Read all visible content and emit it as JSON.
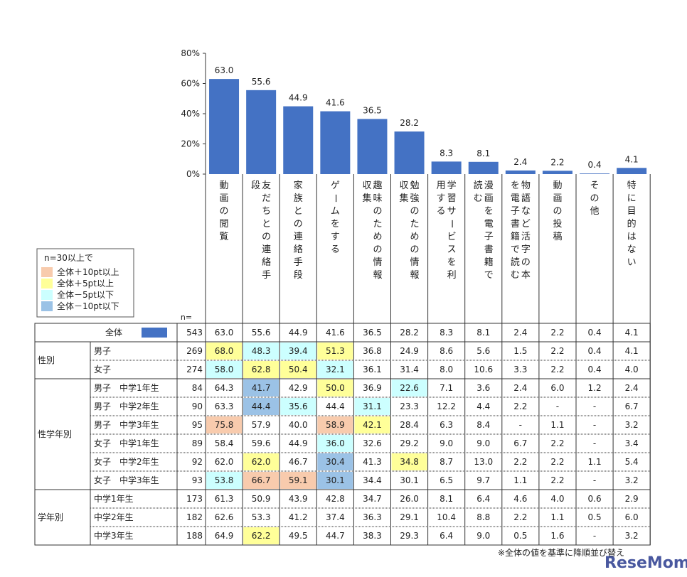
{
  "chart_data": {
    "type": "bar",
    "ylim": [
      0,
      80
    ],
    "yticks": [
      "0%",
      "20%",
      "40%",
      "60%",
      "80%"
    ],
    "bar_color": "#4472c4",
    "categories": [
      "動画の閲覧",
      "友だちとの連絡手段",
      "家族との連絡手段",
      "ゲームをする",
      "趣味のための情報収集",
      "勉強のための情報収集",
      "学習サービスを利用する",
      "漫画を電子書籍で読む",
      "物語など活字の本を電子書籍で読む",
      "動画の投稿",
      "その他",
      "特に目的はない"
    ],
    "values": [
      63.0,
      55.6,
      44.9,
      41.6,
      36.5,
      28.2,
      8.3,
      8.1,
      2.4,
      2.2,
      0.4,
      4.1
    ],
    "value_labels": [
      "63.0",
      "55.6",
      "44.9",
      "41.6",
      "36.5",
      "28.2",
      "8.3",
      "8.1",
      "2.4",
      "2.2",
      "0.4",
      "4.1"
    ]
  },
  "legend": {
    "title": "n=30以上で",
    "items": [
      {
        "label": "全体＋10pt以上",
        "color": "#f8cbad"
      },
      {
        "label": "全体＋5pt以上",
        "color": "#ffff99"
      },
      {
        "label": "全体－5pt以下",
        "color": "#ccffff"
      },
      {
        "label": "全体－10pt以下",
        "color": "#9bc2e6"
      }
    ]
  },
  "n_label": "n=",
  "colors": {
    "plus10": "#f8cbad",
    "plus5": "#ffff99",
    "minus5": "#ccffff",
    "minus10": "#9bc2e6"
  },
  "table": {
    "total": {
      "label": "全体",
      "n": "543",
      "values": [
        "63.0",
        "55.6",
        "44.9",
        "41.6",
        "36.5",
        "28.2",
        "8.3",
        "8.1",
        "2.4",
        "2.2",
        "0.4",
        "4.1"
      ]
    },
    "groups": [
      {
        "label": "性別",
        "rows": [
          {
            "label": "男子",
            "n": "269",
            "values": [
              "68.0",
              "48.3",
              "39.4",
              "51.3",
              "36.8",
              "24.9",
              "8.6",
              "5.6",
              "1.5",
              "2.2",
              "0.4",
              "4.1"
            ],
            "hl": [
              "plus5",
              "minus5",
              "minus5",
              "plus5",
              "",
              "",
              "",
              "",
              "",
              "",
              "",
              ""
            ]
          },
          {
            "label": "女子",
            "n": "274",
            "values": [
              "58.0",
              "62.8",
              "50.4",
              "32.1",
              "36.1",
              "31.4",
              "8.0",
              "10.6",
              "3.3",
              "2.2",
              "0.4",
              "4.0"
            ],
            "hl": [
              "minus5",
              "plus5",
              "plus5",
              "minus5",
              "",
              "",
              "",
              "",
              "",
              "",
              "",
              ""
            ]
          }
        ]
      },
      {
        "label": "性学年別",
        "rows": [
          {
            "label": "男子　中学1年生",
            "n": "84",
            "values": [
              "64.3",
              "41.7",
              "42.9",
              "50.0",
              "36.9",
              "22.6",
              "7.1",
              "3.6",
              "2.4",
              "6.0",
              "1.2",
              "2.4"
            ],
            "hl": [
              "",
              "minus10",
              "",
              "plus5",
              "",
              "minus5",
              "",
              "",
              "",
              "",
              "",
              ""
            ]
          },
          {
            "label": "男子　中学2年生",
            "n": "90",
            "values": [
              "63.3",
              "44.4",
              "35.6",
              "44.4",
              "31.1",
              "23.3",
              "12.2",
              "4.4",
              "2.2",
              "-",
              "-",
              "6.7"
            ],
            "hl": [
              "",
              "minus10",
              "minus5",
              "",
              "minus5",
              "",
              "",
              "",
              "",
              "",
              "",
              ""
            ]
          },
          {
            "label": "男子　中学3年生",
            "n": "95",
            "values": [
              "75.8",
              "57.9",
              "40.0",
              "58.9",
              "42.1",
              "28.4",
              "6.3",
              "8.4",
              "-",
              "1.1",
              "-",
              "3.2"
            ],
            "hl": [
              "plus10",
              "",
              "",
              "plus10",
              "plus5",
              "",
              "",
              "",
              "",
              "",
              "",
              ""
            ]
          },
          {
            "label": "女子　中学1年生",
            "n": "89",
            "values": [
              "58.4",
              "59.6",
              "44.9",
              "36.0",
              "32.6",
              "29.2",
              "9.0",
              "9.0",
              "6.7",
              "2.2",
              "-",
              "3.4"
            ],
            "hl": [
              "",
              "",
              "",
              "minus5",
              "",
              "",
              "",
              "",
              "",
              "",
              "",
              ""
            ]
          },
          {
            "label": "女子　中学2年生",
            "n": "92",
            "values": [
              "62.0",
              "62.0",
              "46.7",
              "30.4",
              "41.3",
              "34.8",
              "8.7",
              "13.0",
              "2.2",
              "2.2",
              "1.1",
              "5.4"
            ],
            "hl": [
              "",
              "plus5",
              "",
              "minus10",
              "",
              "plus5",
              "",
              "",
              "",
              "",
              "",
              ""
            ]
          },
          {
            "label": "女子　中学3年生",
            "n": "93",
            "values": [
              "53.8",
              "66.7",
              "59.1",
              "30.1",
              "34.4",
              "30.1",
              "6.5",
              "9.7",
              "1.1",
              "2.2",
              "-",
              "3.2"
            ],
            "hl": [
              "minus5",
              "plus10",
              "plus10",
              "minus10",
              "",
              "",
              "",
              "",
              "",
              "",
              "",
              ""
            ]
          }
        ]
      },
      {
        "label": "学年別",
        "rows": [
          {
            "label": "中学1年生",
            "n": "173",
            "values": [
              "61.3",
              "50.9",
              "43.9",
              "42.8",
              "34.7",
              "26.0",
              "8.1",
              "6.4",
              "4.6",
              "4.0",
              "0.6",
              "2.9"
            ],
            "hl": [
              "",
              "",
              "",
              "",
              "",
              "",
              "",
              "",
              "",
              "",
              "",
              ""
            ]
          },
          {
            "label": "中学2年生",
            "n": "182",
            "values": [
              "62.6",
              "53.3",
              "41.2",
              "37.4",
              "36.3",
              "29.1",
              "10.4",
              "8.8",
              "2.2",
              "1.1",
              "0.5",
              "6.0"
            ],
            "hl": [
              "",
              "",
              "",
              "",
              "",
              "",
              "",
              "",
              "",
              "",
              "",
              ""
            ]
          },
          {
            "label": "中学3年生",
            "n": "188",
            "values": [
              "64.9",
              "62.2",
              "49.5",
              "44.7",
              "38.3",
              "29.3",
              "6.4",
              "9.0",
              "0.5",
              "1.6",
              "-",
              "3.2"
            ],
            "hl": [
              "",
              "plus5",
              "",
              "",
              "",
              "",
              "",
              "",
              "",
              "",
              "",
              ""
            ]
          }
        ]
      }
    ]
  },
  "footnote": "※全体の値を基準に降順並び替え",
  "watermark": "ReseMom"
}
